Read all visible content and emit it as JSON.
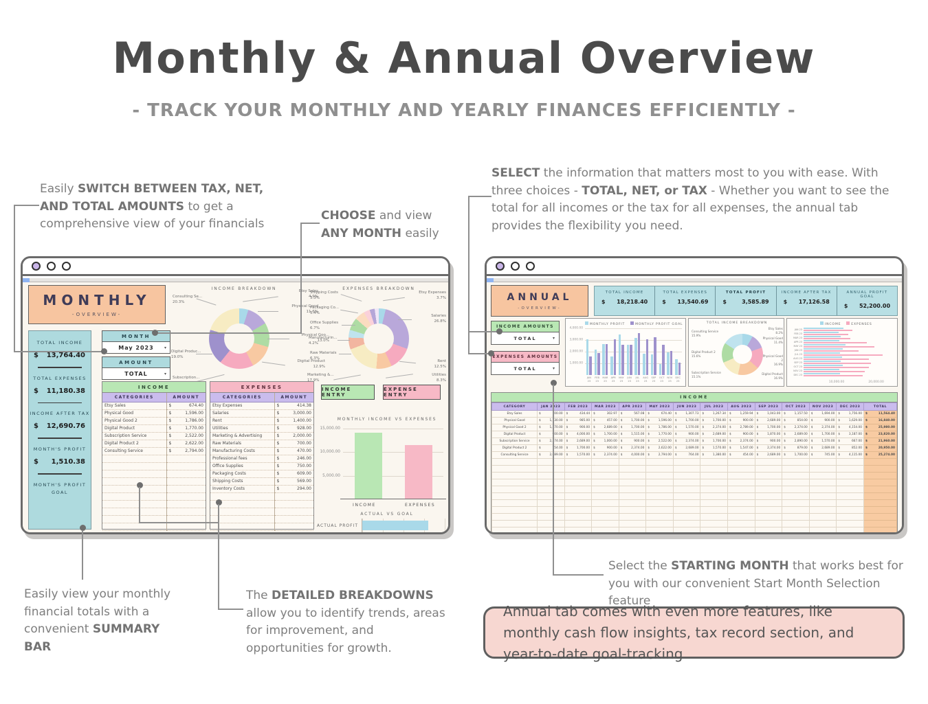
{
  "page": {
    "title": "Monthly & Annual Overview",
    "subtitle": "- TRACK YOUR MONTHLY AND YEARLY FINANCES EFFICIENTLY -"
  },
  "currency": "$",
  "icons": {
    "chevron_down": "▾"
  },
  "annotations": {
    "switch": {
      "pre": "Easily ",
      "bold": "SWITCH BETWEEN TAX, NET, AND TOTAL AMOUNTS",
      "post": " to get a comprehensive view of your financials"
    },
    "choose": {
      "bold1": "CHOOSE",
      "mid": " and view ",
      "bold2": "ANY MONTH",
      "post": " easily"
    },
    "select": {
      "bold1": "SELECT",
      "mid1": " the information that matters most to you with ease. With three choices - ",
      "bold2": "TOTAL, NET, or TAX",
      "mid2": " - Whether you want to see the total for all incomes or the tax for all expenses, the annual tab provides the flexibility you need."
    },
    "summary": {
      "pre": "Easily view your monthly financial totals with a convenient ",
      "bold": "SUMMARY BAR"
    },
    "breakdowns": {
      "pre": "The ",
      "bold": "DETAILED BREAKDOWNS",
      "post": " allow you to identify trends, areas for improvement, and opportunities for growth."
    },
    "starting": {
      "pre": "Select the ",
      "bold": "STARTING MONTH",
      "post": " that works best for you with our convenient Start Month Selection feature"
    },
    "features_box": "Annual tab comes with even more features, like monthly cash flow insights, tax record section, and year-to-date goal-tracking"
  },
  "monthly": {
    "header": {
      "title": "MONTHLY",
      "subtitle": "-OVERVIEW-"
    },
    "sidebar": [
      {
        "label": "TOTAL INCOME",
        "value": "13,764.40"
      },
      {
        "label": "TOTAL EXPENSES",
        "value": "11,180.38"
      },
      {
        "label": "INCOME AFTER TAX",
        "value": "12,690.76"
      },
      {
        "label": "MONTH'S PROFIT",
        "value": "1,510.38"
      },
      {
        "label": "MONTH'S PROFIT GOAL",
        "value": ""
      }
    ],
    "month_control": {
      "label": "MONTH",
      "value": "May 2023"
    },
    "amount_control": {
      "label": "AMOUNT",
      "value": "TOTAL"
    },
    "income_table": {
      "title": "INCOME",
      "columns": [
        "CATEGORIES",
        "AMOUNT"
      ],
      "rows": [
        [
          "Etsy Sales",
          "674.40"
        ],
        [
          "Physical Good",
          "1,596.00"
        ],
        [
          "Physical Good 2",
          "1,786.00"
        ],
        [
          "Digital Product",
          "1,770.00"
        ],
        [
          "Subscription Service",
          "2,522.00"
        ],
        [
          "Digital Product 2",
          "2,622.00"
        ],
        [
          "Consulting Service",
          "2,794.00"
        ]
      ]
    },
    "expenses_table": {
      "title": "EXPENSES",
      "columns": [
        "CATEGORIES",
        "AMOUNT"
      ],
      "rows": [
        [
          "Etsy Expenses",
          "414.38"
        ],
        [
          "Salaries",
          "3,000.00"
        ],
        [
          "Rent",
          "1,400.00"
        ],
        [
          "Utilities",
          "928.00"
        ],
        [
          "Marketing & Advertising",
          "2,000.00"
        ],
        [
          "Raw Materials",
          "700.00"
        ],
        [
          "Manufacturing Costs",
          "470.00"
        ],
        [
          "Professional fees",
          "246.00"
        ],
        [
          "Office Supplies",
          "750.00"
        ],
        [
          "Packaging Costs",
          "609.00"
        ],
        [
          "Shipping Costs",
          "569.00"
        ],
        [
          "Inventory Costs",
          "294.00"
        ]
      ]
    },
    "buttons": {
      "income": "INCOME ENTRY",
      "expense": "EXPENSE ENTRY"
    }
  },
  "annual": {
    "header": {
      "title": "ANNUAL",
      "subtitle": "-OVERVIEW-"
    },
    "stats": [
      {
        "label": "TOTAL INCOME",
        "value": "18,218.40"
      },
      {
        "label": "TOTAL EXPENSES",
        "value": "13,540.69"
      },
      {
        "label": "TOTAL PROFIT",
        "value": "3,585.89"
      },
      {
        "label": "INCOME AFTER TAX",
        "value": "17,126.58"
      },
      {
        "label": "ANNUAL PROFIT GOAL",
        "value": "52,200.00"
      }
    ],
    "income_amounts": {
      "label": "INCOME AMOUNTS",
      "value": "TOTAL"
    },
    "expenses_amounts": {
      "label": "EXPENSES AMOUNTS",
      "value": "TOTAL"
    },
    "table": {
      "title": "INCOME",
      "first_col": "CATEGORY",
      "month_cols": [
        "JAN 2023",
        "FEB 2023",
        "MAR 2023",
        "APR 2023",
        "MAY 2023",
        "JUN 2023",
        "JUL 2023",
        "AUG 2023",
        "SEP 2023",
        "OCT 2023",
        "NOV 2023",
        "DEC 2023"
      ],
      "total_col": "TOTAL",
      "rows": [
        [
          "Etsy Sales",
          "100.00",
          "434.44",
          "302.97",
          "567.08",
          "674.40",
          "1,307.73",
          "1,267.34",
          "1,259.94",
          "1,043.00",
          "1,157.50",
          "1,694.00",
          "1,756.00",
          "11,564.40"
        ],
        [
          "Physical Good",
          "1,730.00",
          "985.00",
          "457.00",
          "1,700.00",
          "1,596.00",
          "1,700.00",
          "1,700.00",
          "900.00",
          "2,689.00",
          "854.00",
          "900.00",
          "1,629.00",
          "16,840.00"
        ],
        [
          "Physical Good 2",
          "1,570.00",
          "900.00",
          "2,689.00",
          "1,700.00",
          "1,786.00",
          "1,570.00",
          "2,374.00",
          "2,789.00",
          "1,700.00",
          "2,374.00",
          "2,374.00",
          "4,154.00",
          "25,980.00"
        ],
        [
          "Digital Product",
          "900.00",
          "4,000.00",
          "1,700.00",
          "1,515.00",
          "1,770.00",
          "900.00",
          "2,689.00",
          "900.00",
          "1,870.00",
          "2,689.00",
          "1,700.00",
          "3,187.00",
          "23,820.00"
        ],
        [
          "Subscription Service",
          "2,374.00",
          "2,689.00",
          "1,000.00",
          "900.00",
          "2,522.00",
          "2,374.00",
          "1,700.00",
          "2,374.00",
          "900.00",
          "2,890.00",
          "1,570.00",
          "667.00",
          "21,960.00"
        ],
        [
          "Digital Product 2",
          "754.00",
          "1,700.00",
          "900.00",
          "2,374.00",
          "2,622.00",
          "2,689.00",
          "1,570.00",
          "1,547.00",
          "2,374.00",
          "879.00",
          "2,689.00",
          "852.00",
          "20,950.00"
        ],
        [
          "Consulting Service",
          "2,689.00",
          "1,570.00",
          "2,374.00",
          "4,000.00",
          "2,794.00",
          "764.00",
          "1,380.00",
          "454.00",
          "2,689.00",
          "1,700.00",
          "745.00",
          "4,115.00",
          "25,274.00"
        ]
      ]
    }
  },
  "chart_data": {
    "monthly_income_breakdown": {
      "type": "pie",
      "title": "INCOME BREAKDOWN",
      "slices": [
        {
          "label": "Etsy Sales",
          "display": "Etsy Sales",
          "pct": 4.9,
          "pct_label": "4.9%",
          "color": "#a9d9e9"
        },
        {
          "label": "Physical Good",
          "display": "Physical Good",
          "pct": 11.6,
          "pct_label": "11.6%",
          "color": "#b9a8da"
        },
        {
          "label": "Physical Good 2",
          "display": "Physical Goo...",
          "pct": 13.0,
          "pct_label": "13.0%",
          "color": "#aedca4"
        },
        {
          "label": "Digital Product",
          "display": "Digital Product",
          "pct": 12.9,
          "pct_label": "12.9%",
          "color": "#f8c9a2"
        },
        {
          "label": "Subscription Service",
          "display": "Subscription...",
          "pct": 18.3,
          "pct_label": "18.3%",
          "color": "#f6aabf"
        },
        {
          "label": "Digital Product 2",
          "display": "Digital Produc...",
          "pct": 19.0,
          "pct_label": "19.0%",
          "color": "#9e91cc"
        },
        {
          "label": "Consulting Service",
          "display": "Consulting Se...",
          "pct": 20.3,
          "pct_label": "20.3%",
          "color": "#f7ecc3"
        }
      ]
    },
    "monthly_expenses_breakdown": {
      "type": "pie",
      "title": "EXPENSES BREAKDOWN",
      "slices": [
        {
          "label": "Etsy Expenses",
          "display": "Etsy Expenses",
          "pct": 3.7,
          "pct_label": "3.7%",
          "color": "#a9d9e9"
        },
        {
          "label": "Salaries",
          "display": "Salaries",
          "pct": 26.8,
          "pct_label": "26.8%",
          "color": "#b9a8da"
        },
        {
          "label": "Rent",
          "display": "Rent",
          "pct": 12.5,
          "pct_label": "12.5%",
          "color": "#f6aabf"
        },
        {
          "label": "Utilities",
          "display": "Utilities",
          "pct": 8.3,
          "pct_label": "8.3%",
          "color": "#f8c9a2"
        },
        {
          "label": "Marketing & Advertising",
          "display": "Marketing &...",
          "pct": 17.9,
          "pct_label": "17.9%",
          "color": "#f7ecc3"
        },
        {
          "label": "Raw Materials",
          "display": "Raw Materials",
          "pct": 6.3,
          "pct_label": "6.3%",
          "color": "#f2b5a0"
        },
        {
          "label": "Manufacturing Costs",
          "display": "Manufacturin...",
          "pct": 4.2,
          "pct_label": "4.2%",
          "color": "#bfe3ee"
        },
        {
          "label": "Office Supplies",
          "display": "Office Supplies",
          "pct": 6.7,
          "pct_label": "6.7%",
          "color": "#aedca4"
        },
        {
          "label": "Packaging Costs",
          "display": "Packaging Co...",
          "pct": 5.4,
          "pct_label": "5.4%",
          "color": "#fbdcc0"
        },
        {
          "label": "Shipping Costs",
          "display": "Shipping Costs",
          "pct": 3.3,
          "pct_label": "3.3%",
          "color": "#fad1da"
        },
        {
          "label": "Inventory Costs",
          "display": "",
          "pct": 2.7,
          "pct_label": "",
          "color": "#b5a6d8"
        },
        {
          "label": "Professional fees",
          "display": "",
          "pct": 2.2,
          "pct_label": "",
          "color": "#efe6f7"
        }
      ]
    },
    "monthly_income_vs_expenses": {
      "type": "bar",
      "title": "MONTHLY INCOME VS EXPENSES",
      "categories": [
        "INCOME",
        "EXPENSES"
      ],
      "values": [
        13764.4,
        11180.38
      ],
      "colors": [
        "#b9e7b4",
        "#f7b9c6"
      ],
      "ylim": [
        0,
        15000
      ],
      "yticks": [
        "15,000.00",
        "10,000.00",
        "5,000.00"
      ]
    },
    "actual_vs_goal": {
      "type": "bar",
      "title": "ACTUAL VS GOAL",
      "orientation": "horizontal",
      "rows": [
        {
          "label": "ACTUAL PROFIT",
          "value": 1510.38,
          "color": "#a9d9e9"
        }
      ],
      "goal_preview_color": "#f8cba2"
    },
    "annual_monthly_profit": {
      "type": "bar",
      "months": [
        "JAN 23",
        "FEB 23",
        "MAR 23",
        "APR 23",
        "MAY 23",
        "JUN 23",
        "JUL 23",
        "AUG 23",
        "SEP 23",
        "OCT 23",
        "NOV 23",
        "DEC 23"
      ],
      "series": [
        {
          "name": "MONTHLY PROFIT",
          "color": "#a9d9e9",
          "values": [
            2950,
            2100,
            2550,
            1550,
            3350,
            2500,
            3100,
            1800,
            1700,
            900,
            1900,
            1300
          ]
        },
        {
          "name": "MONTHLY PROFIT GOAL",
          "color": "#9e91cc",
          "values": [
            1550,
            1850,
            2550,
            2950,
            2500,
            2500,
            3500,
            3000,
            3150,
            2500,
            2000,
            1050
          ]
        }
      ],
      "ylim": [
        0,
        4000
      ],
      "yticks": [
        "4,000.00",
        "3,000.00",
        "2,000.00",
        "1,000.00"
      ]
    },
    "annual_income_breakdown": {
      "type": "pie",
      "title": "TOTAL INCOME BREAKDOWN",
      "slices": [
        {
          "label": "Etsy Sales",
          "display": "Etsy Sales",
          "pct": 8.2,
          "pct_label": "8.2%",
          "color": "#a9d9e9"
        },
        {
          "label": "Physical Good",
          "display": "Physical Good",
          "pct": 11.4,
          "pct_label": "11.4%",
          "color": "#b9a8da"
        },
        {
          "label": "Physical Good 2",
          "display": "Physical Good 2",
          "pct": 16.9,
          "pct_label": "16.9%",
          "color": "#f6aabf"
        },
        {
          "label": "Digital Product",
          "display": "Digital Product",
          "pct": 16.9,
          "pct_label": "16.9%",
          "color": "#f8c9a2"
        },
        {
          "label": "Subscription Service",
          "display": "Subscription Service",
          "pct": 15.1,
          "pct_label": "15.1%",
          "color": "#f7ecc3"
        },
        {
          "label": "Digital Product 2",
          "display": "Digital Product 2",
          "pct": 15.6,
          "pct_label": "15.6%",
          "color": "#aedca4"
        },
        {
          "label": "Consulting Service",
          "display": "Consulting Service",
          "pct": 15.9,
          "pct_label": "15.9%",
          "color": "#bfe3ee"
        }
      ]
    },
    "annual_income_vs_expenses": {
      "type": "bar",
      "orientation": "horizontal",
      "months": [
        "JAN 23",
        "FEB 23",
        "MAR 23",
        "APR 23",
        "MAY 23",
        "JUN 23",
        "JUL 23",
        "AUG 23",
        "SEP 23",
        "OCT 23",
        "NOV 23",
        "DEC 23"
      ],
      "series": [
        {
          "name": "INCOME",
          "color": "#a9d9e9",
          "values": [
            9800,
            8600,
            9200,
            8800,
            10400,
            9600,
            9000,
            9400,
            9200,
            9600,
            8800,
            9000
          ]
        },
        {
          "name": "EXPENSES",
          "color": "#f6aabf",
          "values": [
            12000,
            11000,
            11500,
            15500,
            17500,
            13500,
            19500,
            16000,
            16500,
            16000,
            15000,
            14500
          ]
        }
      ],
      "xlim": [
        0,
        22000
      ],
      "xticks": [
        "10,000.00",
        "20,000.00"
      ]
    }
  }
}
